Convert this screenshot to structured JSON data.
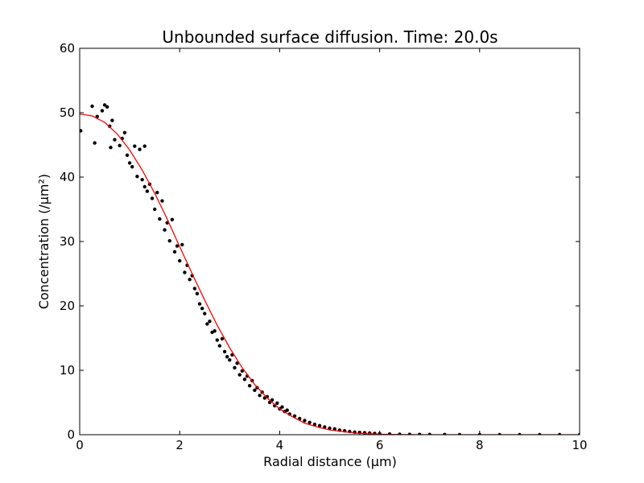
{
  "figure_background": "#ffffff",
  "chart_data": {
    "type": "scatter",
    "title": "Unbounded surface diffusion. Time: 20.0s",
    "xlabel": "Radial distance (µm)",
    "ylabel": "Concentration (/µm²)",
    "xlim": [
      0,
      10
    ],
    "ylim": [
      0,
      60
    ],
    "xticks": [
      "0",
      "2",
      "4",
      "6",
      "8",
      "10"
    ],
    "yticks": [
      "0",
      "10",
      "20",
      "30",
      "40",
      "50",
      "60"
    ],
    "grid": false,
    "legend": "none",
    "series": [
      {
        "kind": "scatter",
        "color": "#000000",
        "points": [
          [
            0.02,
            47.2
          ],
          [
            0.25,
            51.0
          ],
          [
            0.3,
            45.3
          ],
          [
            0.35,
            49.4
          ],
          [
            0.45,
            50.3
          ],
          [
            0.5,
            51.2
          ],
          [
            0.55,
            50.9
          ],
          [
            0.6,
            47.9
          ],
          [
            0.62,
            44.6
          ],
          [
            0.65,
            48.8
          ],
          [
            0.7,
            45.8
          ],
          [
            0.8,
            44.9
          ],
          [
            0.85,
            46.0
          ],
          [
            0.9,
            46.9
          ],
          [
            0.95,
            43.4
          ],
          [
            1.0,
            42.2
          ],
          [
            1.05,
            41.6
          ],
          [
            1.1,
            44.8
          ],
          [
            1.15,
            40.1
          ],
          [
            1.2,
            44.3
          ],
          [
            1.25,
            39.6
          ],
          [
            1.3,
            44.8
          ],
          [
            1.3,
            38.5
          ],
          [
            1.35,
            37.8
          ],
          [
            1.4,
            38.9
          ],
          [
            1.45,
            36.7
          ],
          [
            1.5,
            35.0
          ],
          [
            1.55,
            37.6
          ],
          [
            1.6,
            33.5
          ],
          [
            1.65,
            36.3
          ],
          [
            1.7,
            31.8
          ],
          [
            1.75,
            32.9
          ],
          [
            1.8,
            30.1
          ],
          [
            1.85,
            33.4
          ],
          [
            1.9,
            28.4
          ],
          [
            1.95,
            29.3
          ],
          [
            2.0,
            27.0
          ],
          [
            2.05,
            29.5
          ],
          [
            2.1,
            25.2
          ],
          [
            2.15,
            26.3
          ],
          [
            2.2,
            24.1
          ],
          [
            2.25,
            24.7
          ],
          [
            2.3,
            22.7
          ],
          [
            2.35,
            21.9
          ],
          [
            2.4,
            20.3
          ],
          [
            2.45,
            19.6
          ],
          [
            2.5,
            18.8
          ],
          [
            2.55,
            17.2
          ],
          [
            2.6,
            17.6
          ],
          [
            2.65,
            15.9
          ],
          [
            2.7,
            16.1
          ],
          [
            2.75,
            14.7
          ],
          [
            2.8,
            13.8
          ],
          [
            2.85,
            14.9
          ],
          [
            2.9,
            12.9
          ],
          [
            2.95,
            12.1
          ],
          [
            3.0,
            11.6
          ],
          [
            3.05,
            12.4
          ],
          [
            3.1,
            10.4
          ],
          [
            3.15,
            11.1
          ],
          [
            3.2,
            9.3
          ],
          [
            3.25,
            9.9
          ],
          [
            3.3,
            8.6
          ],
          [
            3.35,
            9.1
          ],
          [
            3.4,
            7.6
          ],
          [
            3.45,
            8.4
          ],
          [
            3.5,
            6.9
          ],
          [
            3.55,
            7.3
          ],
          [
            3.6,
            6.1
          ],
          [
            3.65,
            6.6
          ],
          [
            3.7,
            5.7
          ],
          [
            3.75,
            5.9
          ],
          [
            3.8,
            5.0
          ],
          [
            3.85,
            5.4
          ],
          [
            3.9,
            4.5
          ],
          [
            3.95,
            4.9
          ],
          [
            4.0,
            4.0
          ],
          [
            4.05,
            4.3
          ],
          [
            4.1,
            3.6
          ],
          [
            4.15,
            3.8
          ],
          [
            4.2,
            3.2
          ],
          [
            4.3,
            2.9
          ],
          [
            4.4,
            2.5
          ],
          [
            4.5,
            2.2
          ],
          [
            4.6,
            1.9
          ],
          [
            4.7,
            1.6
          ],
          [
            4.8,
            1.4
          ],
          [
            4.9,
            1.2
          ],
          [
            5.0,
            1.0
          ],
          [
            5.1,
            0.9
          ],
          [
            5.2,
            0.7
          ],
          [
            5.3,
            0.6
          ],
          [
            5.4,
            0.5
          ],
          [
            5.5,
            0.4
          ],
          [
            5.6,
            0.35
          ],
          [
            5.7,
            0.3
          ],
          [
            5.8,
            0.25
          ],
          [
            5.9,
            0.2
          ],
          [
            6.0,
            0.15
          ],
          [
            6.2,
            0.1
          ],
          [
            6.4,
            0.07
          ],
          [
            6.6,
            0.05
          ],
          [
            6.8,
            0.04
          ],
          [
            7.0,
            0.03
          ],
          [
            7.3,
            0.02
          ],
          [
            7.6,
            0.01
          ],
          [
            8.0,
            0.01
          ],
          [
            8.4,
            0.0
          ],
          [
            8.8,
            0.0
          ],
          [
            9.2,
            0.0
          ],
          [
            9.6,
            0.0
          ],
          [
            10.0,
            0.0
          ]
        ]
      },
      {
        "kind": "line",
        "color": "#ff0000",
        "points": [
          [
            0.0,
            49.8
          ],
          [
            0.25,
            49.5
          ],
          [
            0.5,
            48.5
          ],
          [
            0.75,
            46.7
          ],
          [
            1.0,
            44.2
          ],
          [
            1.25,
            41.1
          ],
          [
            1.5,
            37.5
          ],
          [
            1.75,
            33.5
          ],
          [
            2.0,
            29.2
          ],
          [
            2.25,
            25.0
          ],
          [
            2.5,
            20.9
          ],
          [
            2.75,
            17.0
          ],
          [
            3.0,
            13.5
          ],
          [
            3.25,
            10.4
          ],
          [
            3.5,
            7.8
          ],
          [
            3.75,
            5.7
          ],
          [
            4.0,
            4.0
          ],
          [
            4.25,
            2.8
          ],
          [
            4.5,
            1.8
          ],
          [
            4.75,
            1.2
          ],
          [
            5.0,
            0.73
          ],
          [
            5.5,
            0.25
          ],
          [
            6.0,
            0.07
          ],
          [
            6.5,
            0.02
          ],
          [
            7.0,
            0.0
          ],
          [
            8.0,
            0.0
          ],
          [
            9.0,
            0.0
          ],
          [
            10.0,
            0.0
          ]
        ]
      }
    ]
  }
}
